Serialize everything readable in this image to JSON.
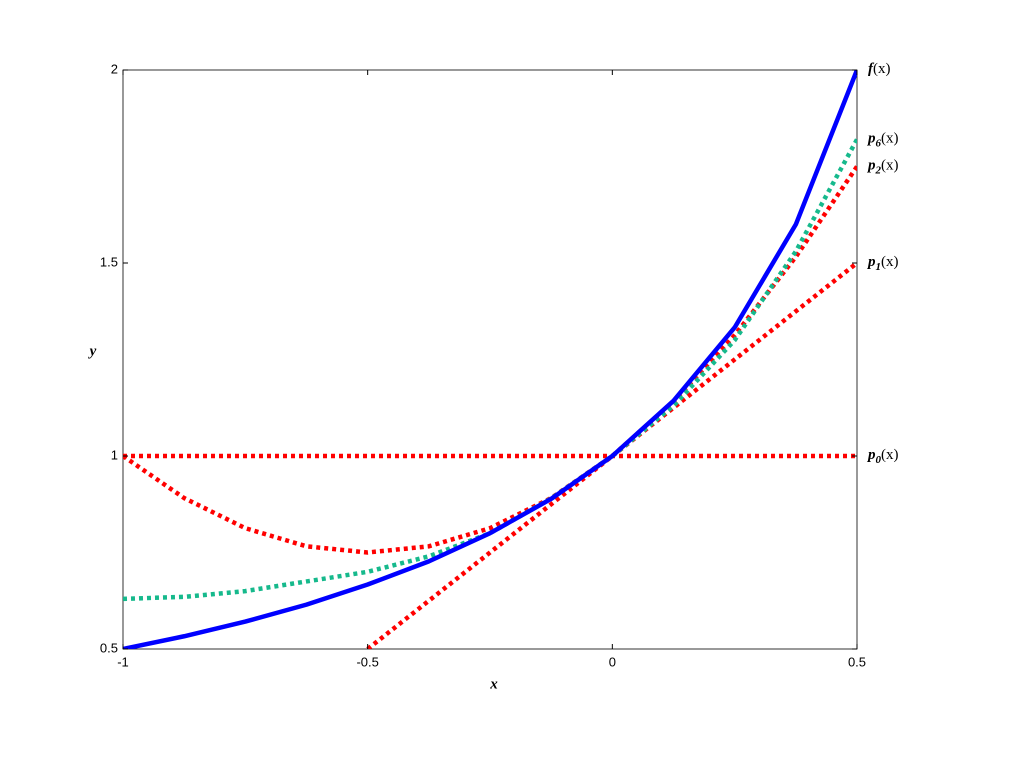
{
  "chart_data": {
    "type": "line",
    "x_label": "x",
    "y_label": "y",
    "x": [
      -1,
      -0.875,
      -0.75,
      -0.625,
      -0.5,
      -0.375,
      -0.25,
      -0.125,
      0,
      0.125,
      0.25,
      0.375,
      0.5
    ],
    "series": [
      {
        "name": "p0(x)",
        "color": "#ff0000",
        "style": "dotted",
        "values": [
          1,
          1,
          1,
          1,
          1,
          1,
          1,
          1,
          1,
          1,
          1,
          1,
          1
        ]
      },
      {
        "name": "p1(x)",
        "color": "#ff0000",
        "style": "dotted",
        "values": [
          null,
          null,
          null,
          null,
          0.5,
          0.625,
          0.75,
          0.875,
          1,
          1.125,
          1.25,
          1.375,
          1.5
        ]
      },
      {
        "name": "p2(x)",
        "color": "#ff0000",
        "style": "dotted",
        "values": [
          1,
          0.891,
          0.813,
          0.766,
          0.75,
          0.766,
          0.813,
          0.891,
          1,
          1.141,
          1.313,
          1.516,
          1.75
        ]
      },
      {
        "name": "p6(x)",
        "color": "#16b98c",
        "style": "dotted",
        "values": [
          0.63,
          0.635,
          0.65,
          0.675,
          0.7,
          0.74,
          0.8,
          0.89,
          1,
          1.13,
          1.3,
          1.53,
          1.82
        ]
      },
      {
        "name": "f(x)",
        "color": "#0000ff",
        "style": "solid",
        "values": [
          0.5,
          0.533,
          0.571,
          0.615,
          0.667,
          0.727,
          0.8,
          0.889,
          1,
          1.143,
          1.333,
          1.6,
          2
        ]
      }
    ],
    "xlim": [
      -1,
      0.5
    ],
    "xticks": [
      -1,
      -0.5,
      0,
      0.5
    ],
    "ylim": [
      0.5,
      2
    ],
    "yticks": [
      0.5,
      1,
      1.5,
      2
    ],
    "grid": false
  }
}
